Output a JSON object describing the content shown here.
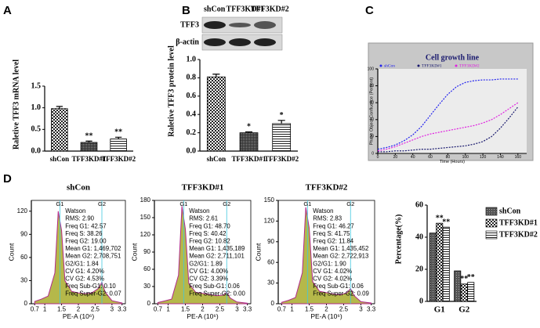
{
  "chart_data": [
    {
      "type": "bar",
      "panel": "A",
      "ylabel": "Raletive TFF3 mRNA level",
      "categories": [
        "shCon",
        "TFF3KD#1",
        "TFF3KD#2"
      ],
      "values": [
        0.98,
        0.2,
        0.28
      ],
      "errors": [
        0.05,
        0.03,
        0.04
      ],
      "annotations": [
        null,
        "**",
        "**"
      ],
      "patterns": [
        "checker",
        "dense",
        "hlines"
      ],
      "ylim": [
        0,
        1.5
      ],
      "yticks": [
        {
          "value": 0,
          "label": "0.0"
        },
        {
          "value": 0.5,
          "label": "0.5"
        },
        {
          "value": 1,
          "label": "1.0"
        },
        {
          "value": 1.5,
          "label": "1.5"
        }
      ]
    },
    {
      "type": "bar",
      "panel": "B",
      "ylabel": "Raletive TFF3 protein level",
      "blot": {
        "lanes": [
          "shCon",
          "TFF3KD#1",
          "TFF3KD#2"
        ],
        "rows": [
          "TFF3",
          "β-actin"
        ]
      },
      "categories": [
        "shCon",
        "TFF3KD#1",
        "TFF3KD#2"
      ],
      "values": [
        0.81,
        0.2,
        0.3
      ],
      "errors": [
        0.03,
        0.01,
        0.035
      ],
      "annotations": [
        null,
        "*",
        "*"
      ],
      "patterns": [
        "checker",
        "dense",
        "hlines"
      ],
      "ylim": [
        0,
        1
      ],
      "yticks": [
        {
          "value": 0,
          "label": "0.0"
        },
        0.2,
        0.4,
        0.6,
        0.8,
        {
          "value": 1,
          "label": "1.0"
        }
      ]
    },
    {
      "type": "line",
      "panel": "C",
      "title": "Cell growth line",
      "xlabel": "Time (Hours)",
      "ylabel": "Phase Object Confluence (Percent)",
      "x": [
        0,
        10,
        20,
        30,
        40,
        50,
        60,
        70,
        80,
        90,
        100,
        110,
        120,
        130,
        140,
        150,
        160
      ],
      "series": [
        {
          "name": "shCon",
          "color": "#2222ee",
          "values": [
            5,
            7,
            10,
            15,
            22,
            32,
            45,
            58,
            70,
            79,
            84,
            86,
            87,
            87,
            88,
            88,
            88
          ]
        },
        {
          "name": "TFF3KD#1",
          "color": "#1a1a6e",
          "values": [
            2,
            2,
            3,
            3,
            4,
            5,
            5,
            6,
            7,
            8,
            9,
            11,
            14,
            20,
            30,
            42,
            55
          ]
        },
        {
          "name": "TFF3KD#2",
          "color": "#e020e0",
          "values": [
            3,
            5,
            8,
            12,
            16,
            20,
            23,
            25,
            27,
            29,
            31,
            33,
            36,
            40,
            46,
            53,
            60
          ]
        }
      ],
      "xlim": [
        0,
        170
      ],
      "xticks": [
        0,
        20,
        40,
        60,
        80,
        100,
        120,
        140,
        160
      ],
      "ylim": [
        0,
        100
      ],
      "yticks": [
        0,
        20,
        40,
        60,
        80,
        100
      ]
    },
    {
      "type": "area",
      "panel": "D",
      "title": "shCon",
      "xlabel": "PE-A (10⁶)",
      "ylabel": "Count",
      "color": "#b5b84a",
      "gates": [
        {
          "label": "G1",
          "value": 1.45
        },
        {
          "label": "G2",
          "value": 2.7
        }
      ],
      "x": [
        0.7,
        0.9,
        1.1,
        1.3,
        1.4,
        1.5,
        1.6,
        1.8,
        2.0,
        2.2,
        2.4,
        2.6,
        2.7,
        2.8,
        3.0,
        3.3
      ],
      "values": [
        3,
        6,
        10,
        40,
        120,
        95,
        30,
        16,
        14,
        13,
        14,
        20,
        28,
        15,
        4,
        1
      ],
      "stats": [
        "Watson",
        "RMS: 2.90",
        "Freq G1: 42.57",
        "Freq S: 38.26",
        "Freq G2: 19.00",
        "Mean G1: 1,469,702",
        "Mean G2: 2,708,751",
        "G2/G1: 1.84",
        "CV G1: 4.20%",
        "CV G2: 4.53%",
        "Freq Sub-G1: 0.10",
        "Freq Super-G2: 0.07"
      ],
      "xlim": [
        0.6,
        3.4
      ],
      "xticks": [
        0.7,
        1,
        1.5,
        2,
        2.5,
        3,
        3.3
      ],
      "ylim": [
        0,
        134
      ],
      "yticks": [
        0,
        30,
        60,
        90,
        120
      ]
    },
    {
      "type": "area",
      "title": "TFF3KD#1",
      "xlabel": "PE-A (10⁶)",
      "ylabel": "Count",
      "color": "#b5b84a",
      "gates": [
        {
          "label": "G1",
          "value": 1.45
        },
        {
          "label": "G2",
          "value": 2.7
        }
      ],
      "x": [
        0.7,
        0.9,
        1.1,
        1.3,
        1.4,
        1.5,
        1.6,
        1.8,
        2.0,
        2.2,
        2.4,
        2.6,
        2.7,
        2.8,
        3.0,
        3.3
      ],
      "values": [
        2,
        5,
        8,
        50,
        170,
        130,
        35,
        20,
        18,
        16,
        14,
        15,
        20,
        10,
        3,
        1
      ],
      "stats": [
        "Watson",
        "RMS: 2.61",
        "Freq G1: 48.70",
        "Freq S: 40.42",
        "Freq G2: 10.82",
        "Mean G1: 1,435,189",
        "Mean G2: 2,711,101",
        "G2/G1: 1.89",
        "CV G1: 4.00%",
        "CV G2: 3.39%",
        "Freq Sub-G1: 0.06",
        "Freq Super-G2: 0.00"
      ],
      "xlim": [
        0.6,
        3.4
      ],
      "xticks": [
        0.7,
        1,
        1.5,
        2,
        2.5,
        3,
        3.3
      ],
      "ylim": [
        0,
        180
      ],
      "yticks": [
        0,
        30,
        60,
        90,
        120,
        150,
        180
      ]
    },
    {
      "type": "area",
      "title": "TFF3KD#2",
      "xlabel": "PE-A (10⁶)",
      "ylabel": "Count",
      "color": "#b5b84a",
      "gates": [
        {
          "label": "G1",
          "value": 1.45
        },
        {
          "label": "G2",
          "value": 2.7
        }
      ],
      "x": [
        0.7,
        0.9,
        1.1,
        1.3,
        1.4,
        1.5,
        1.6,
        1.8,
        2.0,
        2.2,
        2.4,
        2.6,
        2.7,
        2.8,
        3.0,
        3.3
      ],
      "values": [
        2,
        5,
        9,
        45,
        140,
        110,
        32,
        18,
        16,
        14,
        13,
        16,
        22,
        12,
        3,
        1
      ],
      "stats": [
        "Watson",
        "RMS: 2.83",
        "Freq G1: 46.27",
        "Freq S: 41.75",
        "Freq G2: 11.84",
        "Mean G1: 1,435,452",
        "Mean G2: 2,722,913",
        "G2/G1: 1.90",
        "CV G1: 4.02%",
        "CV G2: 4.02%",
        "Freq Sub-G1: 0.06",
        "Freq Super-G2: 0.09"
      ],
      "xlim": [
        0.6,
        3.4
      ],
      "xticks": [
        0.7,
        1,
        1.5,
        2,
        2.5,
        3,
        3.3
      ],
      "ylim": [
        0,
        150
      ],
      "yticks": [
        0,
        30,
        60,
        90,
        120,
        150
      ]
    },
    {
      "type": "bar",
      "ylabel": "Percentage(%)",
      "categories": [
        "G1",
        "G2"
      ],
      "series": [
        {
          "name": "shCon",
          "pattern": "gray",
          "values": [
            42.57,
            19.0
          ],
          "annotations": [
            null,
            null
          ]
        },
        {
          "name": "TFF3KD#1",
          "pattern": "checker",
          "values": [
            48.7,
            10.82
          ],
          "annotations": [
            "**",
            "**"
          ]
        },
        {
          "name": "TFF3KD#2",
          "pattern": "hlines",
          "values": [
            46.27,
            11.84
          ],
          "annotations": [
            "**",
            "**"
          ]
        }
      ],
      "ylim": [
        0,
        60
      ],
      "yticks": [
        0,
        20,
        40,
        60
      ]
    }
  ]
}
